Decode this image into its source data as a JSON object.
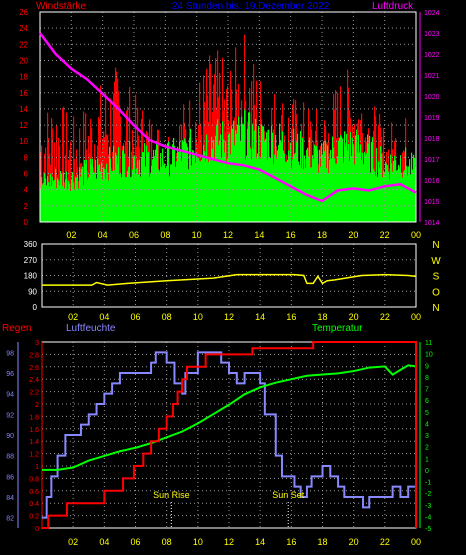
{
  "colors": {
    "background": "#000000",
    "grid": "#9a9a9a",
    "windspeed_fill": "#ff0000",
    "windavg_fill": "#00ff00",
    "pressure": "#ff00ff",
    "pressure_axis": "#ff00ff",
    "wind_axis": "#ff0000",
    "direction": "#ffff00",
    "direction_labels": "#ffff00",
    "time_labels": "#ffff00",
    "rain": "#ff0000",
    "humidity": "#8888ff",
    "temperature": "#00ff00",
    "annotation": "#ffff00",
    "title": "#0000ff"
  },
  "header": {
    "left_label": "Windstärke",
    "title": "24 Stunden bis: 19.Dezember 2022",
    "right_label": "Luftdruck"
  },
  "chart_data": [
    {
      "type": "bar",
      "name": "wind_pressure",
      "title": "24 Stunden bis: 19.Dezember 2022",
      "ylabel_left": "Windstärke",
      "ylabel_right": "Luftdruck",
      "ylim_left": [
        0,
        26
      ],
      "yticks_left": [
        "0",
        "2",
        "4",
        "6",
        "8",
        "10",
        "12",
        "14",
        "16",
        "18",
        "20",
        "22",
        "24",
        "26"
      ],
      "ylim_right": [
        1014,
        1024
      ],
      "yticks_right": [
        "1014",
        "1015",
        "1016",
        "1017",
        "1018",
        "1019",
        "1020",
        "1021",
        "1022",
        "1023",
        "1024"
      ],
      "xticks": [
        "02",
        "04",
        "06",
        "08",
        "10",
        "12",
        "14",
        "16",
        "18",
        "20",
        "22",
        "00"
      ],
      "hours": [
        0,
        1,
        2,
        3,
        4,
        5,
        6,
        7,
        8,
        9,
        10,
        11,
        12,
        13,
        14,
        15,
        16,
        17,
        18,
        19,
        20,
        21,
        22,
        23,
        24
      ],
      "windspeed_envelope": [
        14,
        16,
        13,
        15,
        18,
        20,
        16,
        14,
        12,
        15,
        18,
        22,
        20,
        24,
        19,
        17,
        16,
        15,
        14,
        18,
        20,
        16,
        12,
        14,
        12
      ],
      "windavg_envelope": [
        6,
        7,
        7,
        8,
        9,
        10,
        10,
        10,
        10,
        11,
        12,
        13,
        13,
        14,
        13,
        13,
        12,
        11,
        10,
        12,
        12,
        11,
        9,
        10,
        8
      ],
      "series": [
        {
          "name": "Luftdruck",
          "x": [
            0,
            1,
            2,
            3,
            4,
            5,
            6,
            7,
            8,
            9,
            10,
            11,
            12,
            13,
            14,
            15,
            16,
            17,
            18,
            19,
            20,
            21,
            22,
            23,
            24
          ],
          "values": [
            1023.0,
            1022.0,
            1021.3,
            1020.8,
            1020.1,
            1019.4,
            1018.6,
            1017.9,
            1017.6,
            1017.4,
            1017.2,
            1017.0,
            1016.8,
            1016.7,
            1016.5,
            1016.1,
            1015.7,
            1015.3,
            1015.0,
            1015.5,
            1015.6,
            1015.5,
            1015.7,
            1015.8,
            1015.4
          ]
        }
      ]
    },
    {
      "type": "line",
      "name": "wind_direction",
      "ylim": [
        0,
        360
      ],
      "yticks": [
        "0",
        "90",
        "180",
        "270",
        "360"
      ],
      "right_labels": [
        "N",
        "W",
        "S",
        "O",
        "N"
      ],
      "xticks": [
        "02",
        "04",
        "06",
        "08",
        "10",
        "12",
        "14",
        "16",
        "18",
        "20",
        "22",
        "00"
      ],
      "series": [
        {
          "name": "Windrichtung",
          "x": [
            0,
            3.2,
            3.5,
            4.2,
            5.5,
            8.0,
            11.0,
            12.5,
            13.5,
            15.0,
            16.2,
            16.8,
            17.0,
            17.4,
            17.7,
            18.0,
            18.3,
            18.8,
            20.5,
            22.0,
            23.5,
            24
          ],
          "values": [
            125,
            125,
            140,
            125,
            135,
            150,
            165,
            185,
            185,
            185,
            185,
            180,
            135,
            135,
            175,
            135,
            150,
            155,
            180,
            185,
            180,
            175
          ]
        }
      ]
    },
    {
      "type": "line",
      "name": "rain_humidity_temperature",
      "labels": {
        "rain": "Regen",
        "humidity": "Luftfeuchte",
        "temperature": "Temperatur"
      },
      "rain_ylim": [
        0,
        3
      ],
      "rain_ticks": [
        "0",
        "0.2",
        "0.4",
        "0.6",
        "0.8",
        "1",
        "1.2",
        "1.4",
        "1.6",
        "1.8",
        "2",
        "2.2",
        "2.4",
        "2.6",
        "2.8",
        "3"
      ],
      "humidity_ylim": [
        81,
        99
      ],
      "humidity_ticks": [
        "82",
        "84",
        "86",
        "88",
        "90",
        "92",
        "94",
        "96",
        "98"
      ],
      "temperature_ylim": [
        -5,
        11
      ],
      "temperature_ticks": [
        "-5",
        "-4",
        "-3",
        "-2",
        "-1",
        "0",
        "1",
        "2",
        "3",
        "4",
        "5",
        "6",
        "7",
        "8",
        "9",
        "10",
        "11"
      ],
      "xticks": [
        "02",
        "04",
        "06",
        "08",
        "10",
        "12",
        "14",
        "16",
        "18",
        "20",
        "22",
        "00"
      ],
      "annotations": [
        {
          "text": "Sun Rise",
          "hour": 8.3
        },
        {
          "text": "Sun Set",
          "hour": 15.8
        }
      ],
      "series": [
        {
          "name": "Regen",
          "x": [
            0,
            0.3,
            0.4,
            1.5,
            1.6,
            3.8,
            4.0,
            5.0,
            5.2,
            5.7,
            5.9,
            6.2,
            6.5,
            6.7,
            7.0,
            7.2,
            7.5,
            8.0,
            8.4,
            8.7,
            9.0,
            9.3,
            9.6,
            10.0,
            10.5,
            13.0,
            13.5,
            17.0,
            17.4,
            24,
            24
          ],
          "values": [
            0,
            0,
            0.2,
            0.2,
            0.4,
            0.4,
            0.6,
            0.6,
            0.8,
            0.8,
            1.0,
            1.0,
            1.2,
            1.2,
            1.4,
            1.4,
            1.6,
            1.8,
            2.0,
            2.2,
            2.4,
            2.6,
            2.6,
            2.6,
            2.8,
            2.8,
            2.9,
            2.9,
            3.0,
            3.0,
            0
          ]
        },
        {
          "name": "Luftfeuchte",
          "x": [
            0,
            0.3,
            0.6,
            1.0,
            1.5,
            2.5,
            3.0,
            3.5,
            4.0,
            4.5,
            5.0,
            5.5,
            6.0,
            6.5,
            7.0,
            7.3,
            7.8,
            8.0,
            8.5,
            9.0,
            9.2,
            10.0,
            11.0,
            11.5,
            12.0,
            12.5,
            13.0,
            13.5,
            14.0,
            14.3,
            15.0,
            15.4,
            15.8,
            16.2,
            16.6,
            17.0,
            17.3,
            17.6,
            18.0,
            18.5,
            19.0,
            19.4,
            20.0,
            20.6,
            21.0,
            22.0,
            22.5,
            23.0,
            23.5,
            24
          ],
          "values": [
            82,
            84,
            86,
            88,
            90,
            91,
            92,
            93,
            94,
            95,
            96,
            96,
            96,
            96,
            97,
            98,
            98,
            97,
            95,
            94,
            96,
            98,
            98,
            97,
            96,
            95,
            96,
            96,
            95,
            92,
            88,
            86,
            86,
            85,
            84,
            85,
            86,
            86,
            87,
            86,
            85,
            84,
            84,
            83,
            84,
            84,
            85,
            84,
            85,
            85
          ]
        },
        {
          "name": "Temperatur",
          "x": [
            0,
            1.0,
            2.0,
            3.0,
            4.0,
            5.0,
            6.0,
            7.0,
            8.0,
            9.0,
            10.0,
            11.0,
            12.0,
            13.0,
            14.0,
            15.0,
            16.0,
            17.0,
            18.0,
            19.0,
            20.0,
            21.0,
            22.0,
            22.5,
            23.0,
            23.5,
            24
          ],
          "values": [
            0,
            0,
            0.2,
            0.8,
            1.2,
            1.6,
            1.9,
            2.3,
            2.8,
            3.3,
            4.0,
            4.8,
            5.6,
            6.5,
            7.1,
            7.5,
            7.8,
            8.1,
            8.2,
            8.3,
            8.5,
            8.8,
            8.9,
            8.2,
            8.6,
            9.0,
            8.9
          ]
        }
      ]
    }
  ]
}
